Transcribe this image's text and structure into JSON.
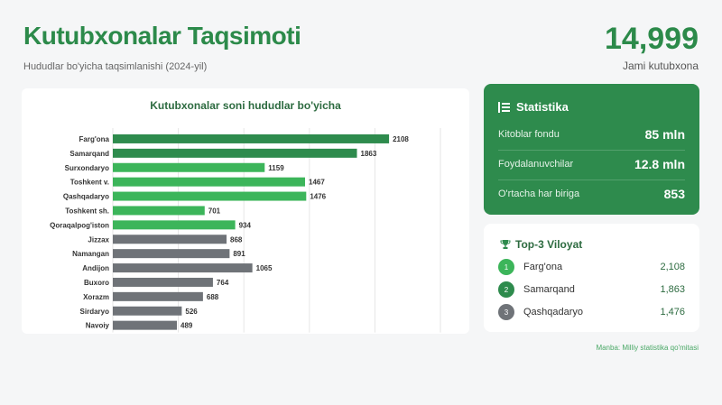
{
  "header": {
    "title": "Kutubxonalar Taqsimoti",
    "subtitle": "Hududlar bo'yicha taqsimlanishi (2024-yil)",
    "total_value": "14,999",
    "total_label": "Jami kutubxona"
  },
  "chart_data": {
    "type": "bar",
    "orientation": "horizontal",
    "title": "Kutubxonalar soni hududlar bo'yicha",
    "categories": [
      "Farg'ona",
      "Samarqand",
      "Surxondaryo",
      "Toshkent v.",
      "Qashqadaryo",
      "Toshkent sh.",
      "Qoraqalpog'iston",
      "Jizzax",
      "Namangan",
      "Andijon",
      "Buxoro",
      "Xorazm",
      "Sirdaryo",
      "Navoiy"
    ],
    "values": [
      2108,
      1863,
      1159,
      1467,
      1476,
      701,
      934,
      868,
      891,
      1065,
      764,
      688,
      526,
      489
    ],
    "bar_colors": [
      "#2e8b4d",
      "#2e8b4d",
      "#3cb55a",
      "#3cb55a",
      "#3cb55a",
      "#3cb55a",
      "#3cb55a",
      "#6f7378",
      "#6f7378",
      "#6f7378",
      "#6f7378",
      "#6f7378",
      "#6f7378",
      "#6f7378"
    ],
    "x_ticks": [
      "0",
      "500",
      "1,000",
      "1,500",
      "2,000",
      "2,500"
    ],
    "xlim": [
      0,
      2500
    ],
    "grid": true
  },
  "stats": {
    "title": "Statistika",
    "items": [
      {
        "label": "Kitoblar fondu",
        "value": "85 mln"
      },
      {
        "label": "Foydalanuvchilar",
        "value": "12.8 mln"
      },
      {
        "label": "O'rtacha har biriga",
        "value": "853"
      }
    ]
  },
  "top3": {
    "title": "Top-3 Viloyat",
    "items": [
      {
        "rank": "1",
        "name": "Farg'ona",
        "value": "2,108",
        "color": "#3cb55a"
      },
      {
        "rank": "2",
        "name": "Samarqand",
        "value": "1,863",
        "color": "#2e8b4d"
      },
      {
        "rank": "3",
        "name": "Qashqadaryo",
        "value": "1,476",
        "color": "#6f7378"
      }
    ]
  },
  "footer": {
    "source": "Manba: Milliy statistika qo'mitasi"
  }
}
